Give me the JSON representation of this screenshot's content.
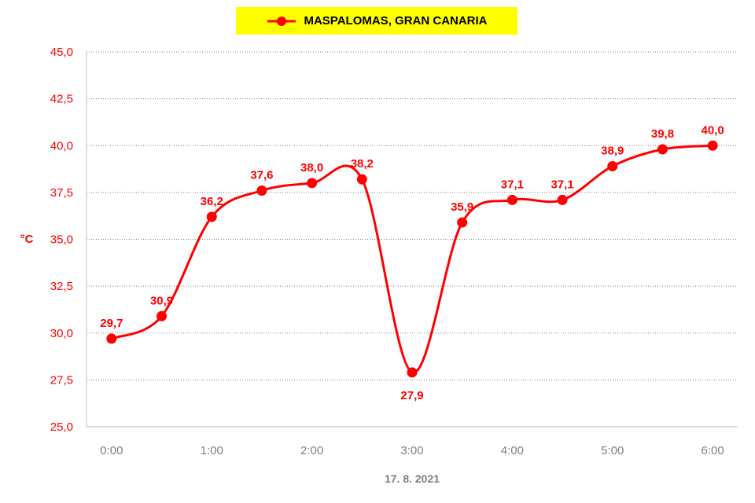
{
  "chart_data": {
    "type": "line",
    "title": "",
    "xlabel": "17. 8. 2021",
    "ylabel": "°C",
    "ylim": [
      25,
      45
    ],
    "yticks": [
      "25,0",
      "27,5",
      "30,0",
      "32,5",
      "35,0",
      "37,5",
      "40,0",
      "42,5",
      "45,0"
    ],
    "ytick_values": [
      25,
      27.5,
      30,
      32.5,
      35,
      37.5,
      40,
      42.5,
      45
    ],
    "xticks": [
      "0:00",
      "1:00",
      "2:00",
      "3:00",
      "4:00",
      "5:00",
      "6:00"
    ],
    "xtick_hours": [
      0,
      1,
      2,
      3,
      4,
      5,
      6
    ],
    "xlim": [
      -0.25,
      6.25
    ],
    "grid": "horizontal-dotted",
    "legend_placement": "top-center",
    "series": [
      {
        "name": "MASPALOMAS, GRAN CANARIA",
        "x": [
          "0:00",
          "0:30",
          "1:00",
          "1:30",
          "2:00",
          "2:30",
          "3:00",
          "3:30",
          "4:00",
          "4:30",
          "5:00",
          "5:30",
          "6:00"
        ],
        "x_hours": [
          0,
          0.5,
          1,
          1.5,
          2,
          2.5,
          3,
          3.5,
          4,
          4.5,
          5,
          5.5,
          6
        ],
        "values": [
          29.7,
          30.9,
          36.2,
          37.6,
          38.0,
          38.2,
          27.9,
          35.9,
          37.1,
          37.1,
          38.9,
          39.8,
          40.0
        ],
        "labels": [
          "29,7",
          "30,9",
          "36,2",
          "37,6",
          "38,0",
          "38,2",
          "27,9",
          "35,9",
          "37,1",
          "37,1",
          "38,9",
          "39,8",
          "40,0"
        ],
        "label_positions": [
          "above",
          "above",
          "above",
          "above",
          "above",
          "above",
          "below",
          "above",
          "above",
          "above",
          "above",
          "above",
          "above"
        ]
      }
    ]
  },
  "colors": {
    "series": "#ff0000",
    "label": "#ff0000",
    "axis_text_y": "#ff0000",
    "axis_text_x": "#7f7f7f",
    "grid": "#808080",
    "legend_bg": "#ffff00",
    "legend_text": "#000000"
  }
}
